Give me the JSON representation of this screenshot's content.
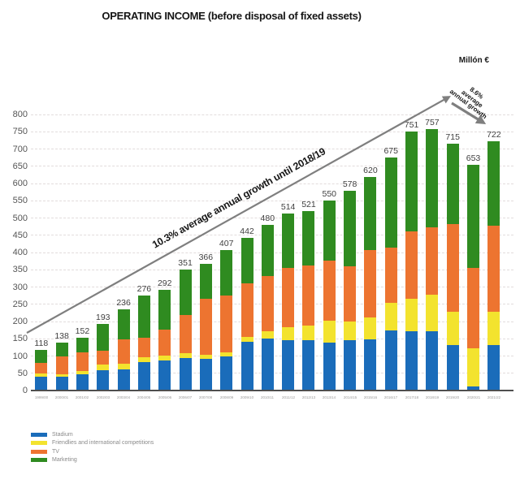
{
  "title": "OPERATING INCOME (before disposal of fixed assets)",
  "unit_label": "Millón €",
  "annotations": {
    "main_growth": "10.3% average annual growth until 2018/19",
    "recent_growth_lines": [
      "8.6%",
      "average",
      "annual growth"
    ]
  },
  "colors": {
    "stadium": "#1a6cba",
    "friendlies": "#f3e32e",
    "tv": "#ed7430",
    "marketing": "#2f8b20",
    "arrow": "#7f7f7f",
    "gridline": "#e2dcdc",
    "axis": "#4f4f4f"
  },
  "chart_data": {
    "type": "bar",
    "stacked": true,
    "title": "OPERATING INCOME (before disposal of fixed assets)",
    "unit": "Millón €",
    "ylim": [
      0,
      800
    ],
    "ytick_step": 50,
    "grid": "horizontal-dashed",
    "legend_position": "bottom-left",
    "categories": [
      "1999/00",
      "2000/01",
      "2001/02",
      "2002/03",
      "2003/04",
      "2004/05",
      "2005/06",
      "2006/07",
      "2007/08",
      "2008/09",
      "2009/10",
      "2010/11",
      "2011/12",
      "2012/13",
      "2013/14",
      "2014/15",
      "2015/16",
      "2016/17",
      "2017/18",
      "2018/19",
      "2019/20",
      "2020/21",
      "2021/22"
    ],
    "totals": [
      118,
      138,
      152,
      193,
      236,
      276,
      292,
      351,
      366,
      407,
      442,
      480,
      514,
      521,
      550,
      578,
      620,
      675,
      751,
      757,
      715,
      653,
      722
    ],
    "series": [
      {
        "name": "Stadium",
        "color": "#1a6cba",
        "values": [
          40,
          40,
          48,
          58,
          62,
          83,
          87,
          95,
          91,
          99,
          142,
          150,
          147,
          147,
          138,
          147,
          149,
          173,
          171,
          171,
          131,
          12,
          131
        ]
      },
      {
        "name": "Friendlies and international competitions",
        "color": "#f3e32e",
        "values": [
          10,
          8,
          8,
          17,
          16,
          14,
          13,
          13,
          12,
          11,
          13,
          22,
          36,
          41,
          65,
          53,
          63,
          82,
          96,
          106,
          97,
          110,
          97
        ]
      },
      {
        "name": "TV",
        "color": "#ed7430",
        "values": [
          30,
          50,
          55,
          40,
          70,
          56,
          77,
          110,
          162,
          166,
          156,
          160,
          172,
          175,
          173,
          160,
          196,
          160,
          194,
          197,
          254,
          233,
          250
        ]
      },
      {
        "name": "Marketing",
        "color": "#2f8b20",
        "values": [
          38,
          40,
          41,
          78,
          88,
          123,
          115,
          133,
          101,
          131,
          131,
          148,
          159,
          158,
          174,
          218,
          212,
          260,
          290,
          283,
          233,
          298,
          244
        ]
      }
    ]
  }
}
